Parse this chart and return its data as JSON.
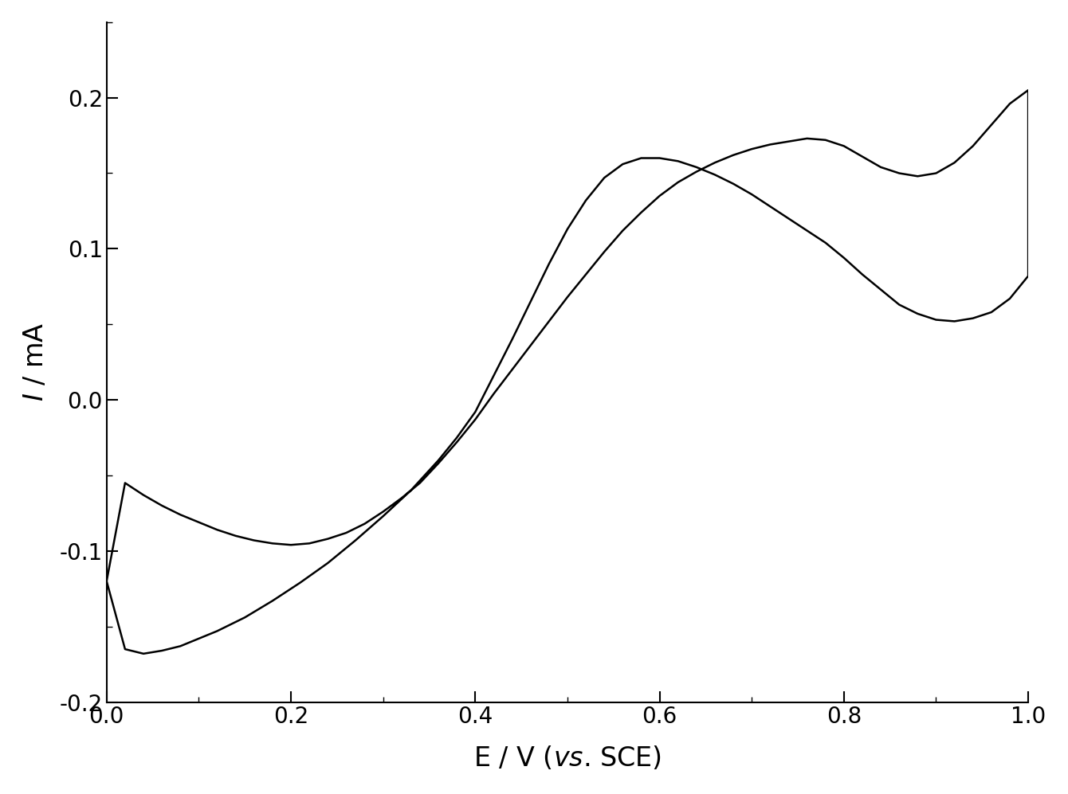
{
  "xlabel": "E / V ($\\it{vs}$. SCE)",
  "ylabel": "$\\it{I}$ / mA",
  "xlim": [
    0.0,
    1.0
  ],
  "ylim": [
    -0.2,
    0.25
  ],
  "xticks": [
    0.0,
    0.2,
    0.4,
    0.6,
    0.8,
    1.0
  ],
  "yticks": [
    -0.2,
    -0.1,
    0.0,
    0.1,
    0.2
  ],
  "line_color": "#000000",
  "line_width": 1.8,
  "background_color": "#ffffff",
  "tick_label_fontsize": 20,
  "axis_label_fontsize": 24,
  "cv_x": [
    0.0,
    0.02,
    0.04,
    0.06,
    0.08,
    0.1,
    0.12,
    0.15,
    0.18,
    0.21,
    0.24,
    0.27,
    0.3,
    0.33,
    0.36,
    0.38,
    0.4,
    0.42,
    0.44,
    0.46,
    0.48,
    0.5,
    0.52,
    0.54,
    0.56,
    0.58,
    0.6,
    0.62,
    0.64,
    0.66,
    0.68,
    0.7,
    0.72,
    0.74,
    0.76,
    0.78,
    0.8,
    0.82,
    0.84,
    0.86,
    0.88,
    0.9,
    0.92,
    0.94,
    0.96,
    0.98,
    1.0,
    1.0,
    0.98,
    0.96,
    0.94,
    0.92,
    0.9,
    0.88,
    0.86,
    0.84,
    0.82,
    0.8,
    0.78,
    0.76,
    0.74,
    0.72,
    0.7,
    0.68,
    0.66,
    0.64,
    0.62,
    0.6,
    0.58,
    0.56,
    0.54,
    0.52,
    0.5,
    0.48,
    0.46,
    0.44,
    0.42,
    0.4,
    0.38,
    0.36,
    0.34,
    0.32,
    0.3,
    0.28,
    0.26,
    0.24,
    0.22,
    0.2,
    0.18,
    0.16,
    0.14,
    0.12,
    0.1,
    0.08,
    0.06,
    0.04,
    0.02,
    0.0
  ],
  "cv_y": [
    -0.12,
    -0.165,
    -0.168,
    -0.166,
    -0.163,
    -0.158,
    -0.153,
    -0.144,
    -0.133,
    -0.121,
    -0.108,
    -0.093,
    -0.077,
    -0.06,
    -0.04,
    -0.025,
    -0.008,
    0.016,
    0.04,
    0.065,
    0.09,
    0.113,
    0.132,
    0.147,
    0.156,
    0.16,
    0.16,
    0.158,
    0.154,
    0.149,
    0.143,
    0.136,
    0.128,
    0.12,
    0.112,
    0.104,
    0.094,
    0.083,
    0.073,
    0.063,
    0.057,
    0.053,
    0.052,
    0.054,
    0.058,
    0.067,
    0.082,
    0.205,
    0.196,
    0.182,
    0.168,
    0.157,
    0.15,
    0.148,
    0.15,
    0.154,
    0.161,
    0.168,
    0.172,
    0.173,
    0.171,
    0.169,
    0.166,
    0.162,
    0.157,
    0.151,
    0.144,
    0.135,
    0.124,
    0.112,
    0.098,
    0.083,
    0.068,
    0.052,
    0.036,
    0.02,
    0.004,
    -0.013,
    -0.028,
    -0.042,
    -0.055,
    -0.065,
    -0.074,
    -0.082,
    -0.088,
    -0.092,
    -0.095,
    -0.096,
    -0.095,
    -0.093,
    -0.09,
    -0.086,
    -0.081,
    -0.076,
    -0.07,
    -0.063,
    -0.055,
    -0.12
  ]
}
